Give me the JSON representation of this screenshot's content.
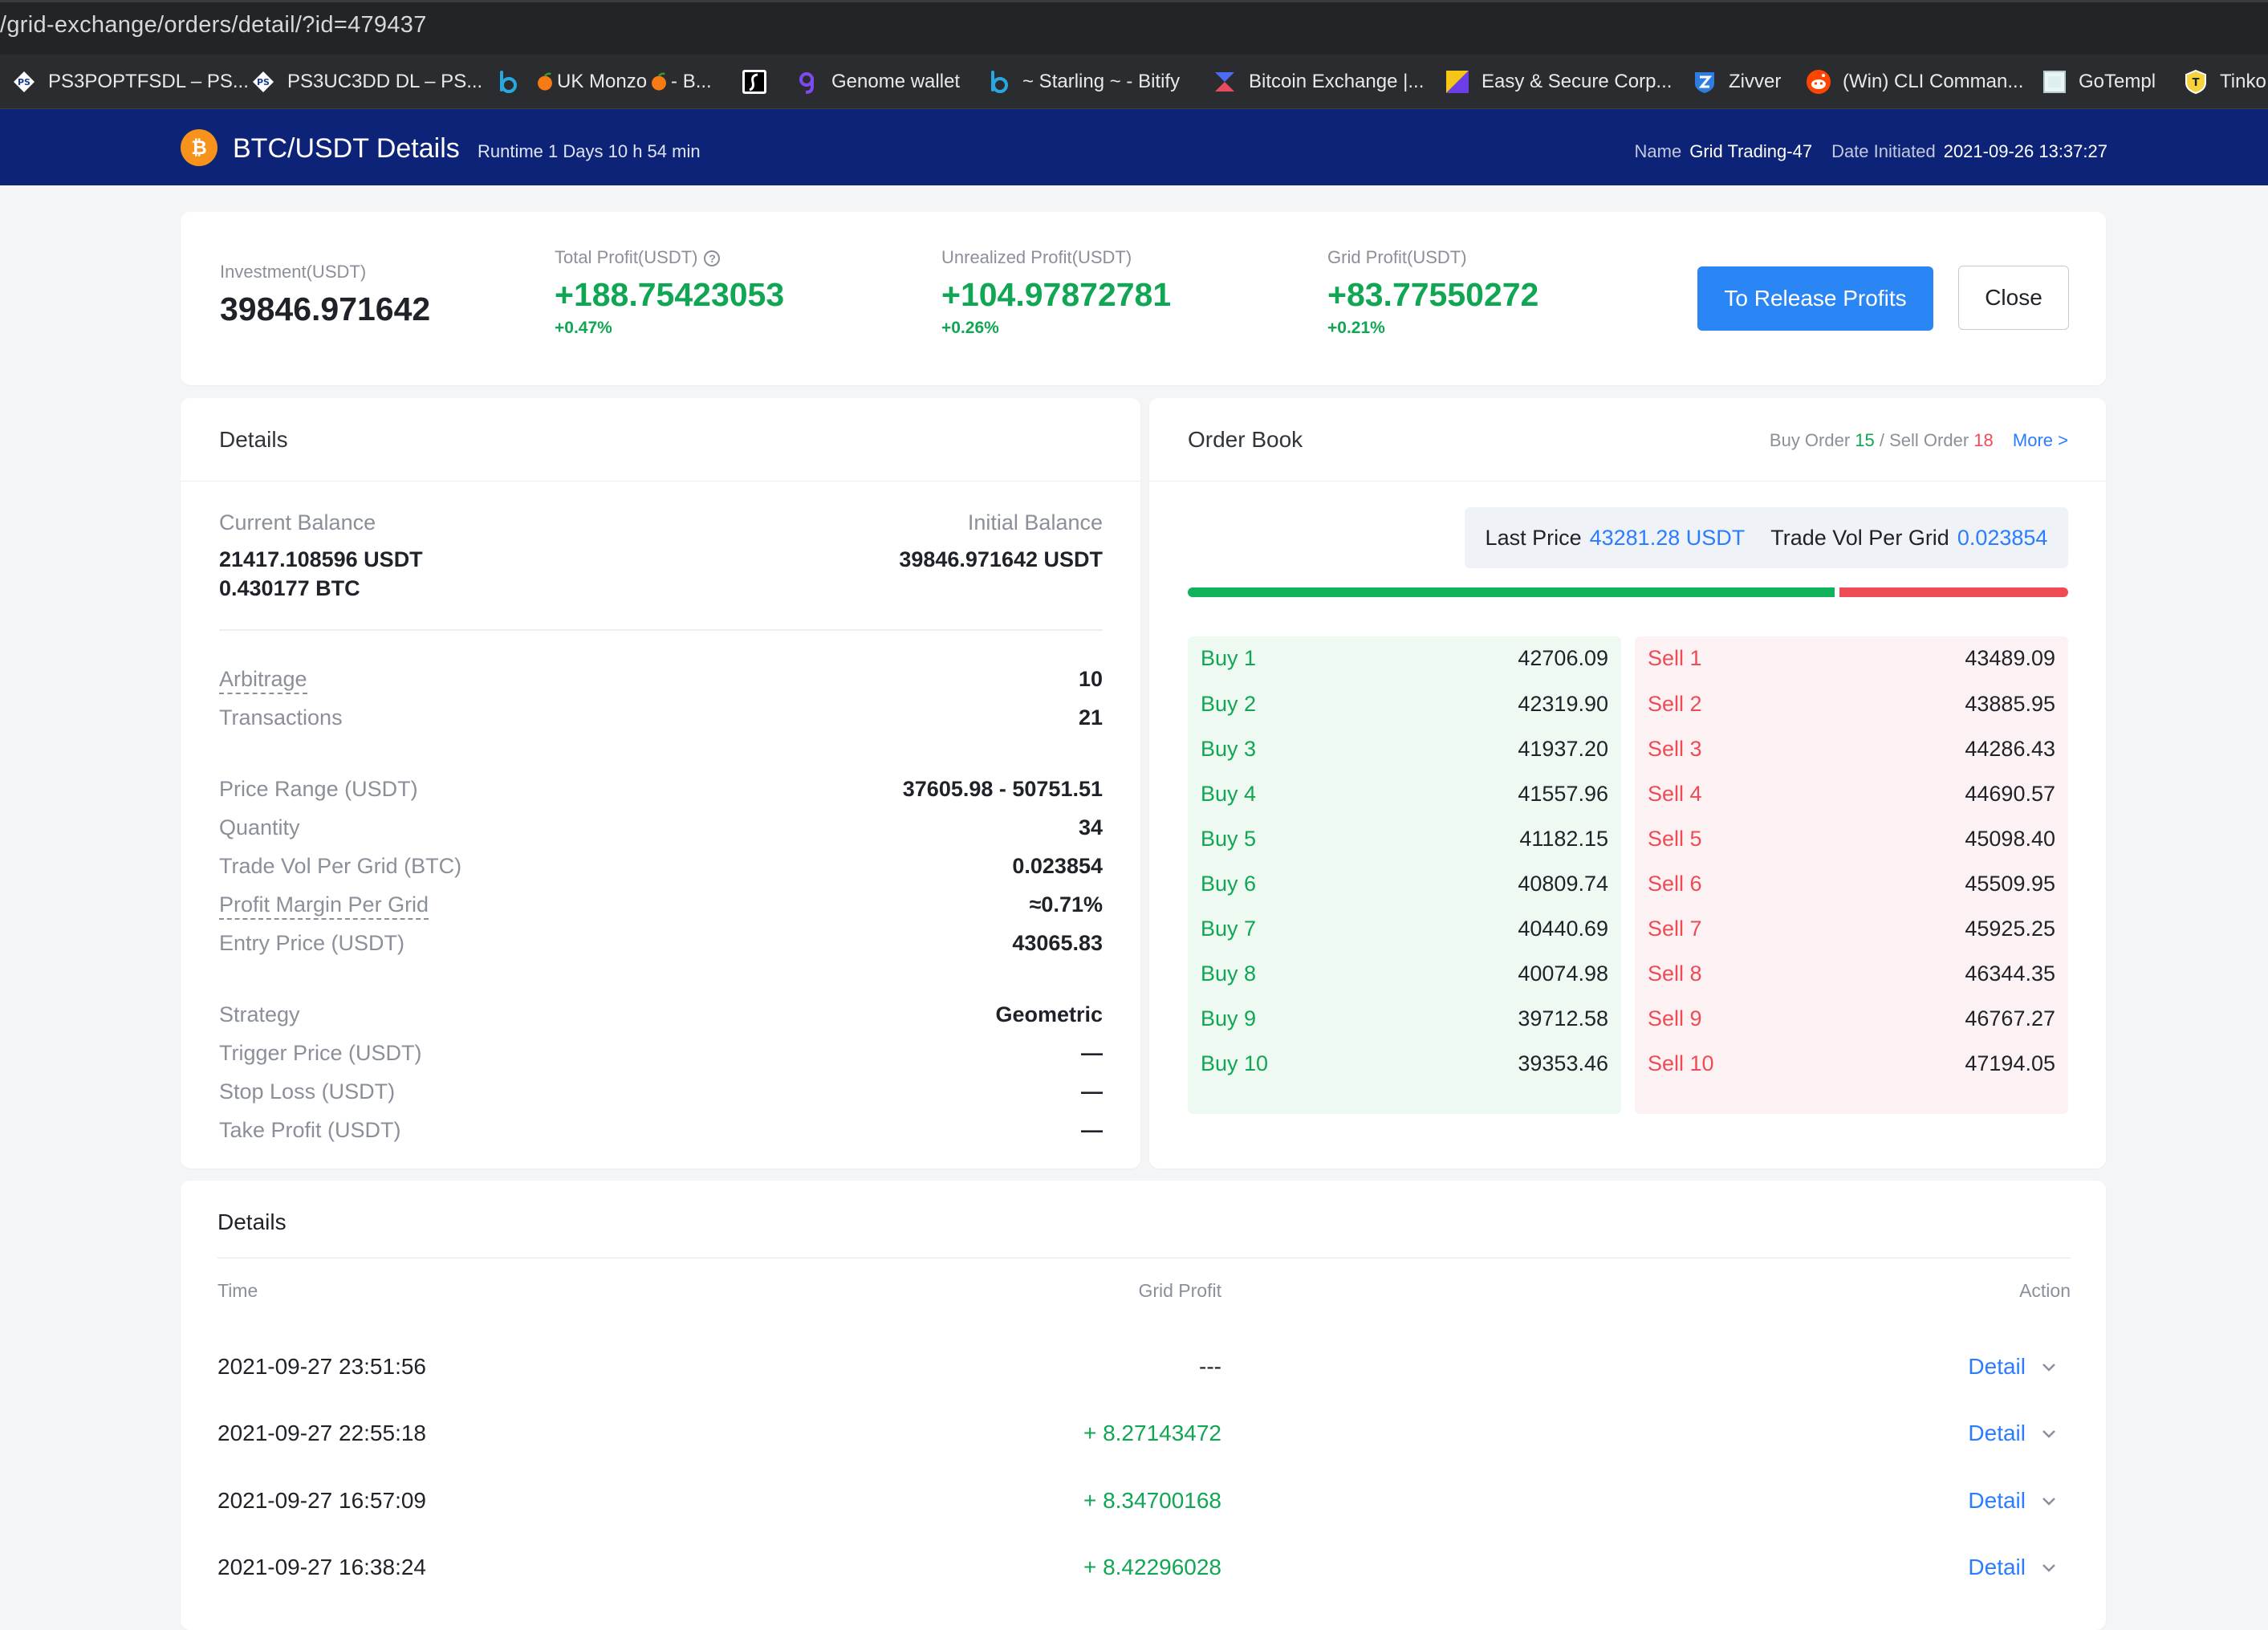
{
  "browser": {
    "url": "/grid-exchange/orders/detail/?id=479437",
    "bookmarks": [
      {
        "label": "PS3POPTFSDL – PS...",
        "icon": "ps-logo-icon"
      },
      {
        "label": "PS3UC3DD DL – PS...",
        "icon": "ps-logo-icon"
      },
      {
        "label": "",
        "icon": "b-logo-icon"
      },
      {
        "label": "UK Monzo",
        "icon": "orange-icon"
      },
      {
        "label": " - B...",
        "icon": "orange-icon"
      },
      {
        "label": "",
        "icon": "s-logo-icon"
      },
      {
        "label": "Genome wallet",
        "icon": "genome-icon"
      },
      {
        "label": "~ Starling ~ - Bitify",
        "icon": "b-logo-icon"
      },
      {
        "label": "Bitcoin Exchange |...",
        "icon": "exchange-logo-icon"
      },
      {
        "label": "Easy & Secure Corp...",
        "icon": "easy-logo-icon"
      },
      {
        "label": "Zivver",
        "icon": "zivver-icon"
      },
      {
        "label": "(Win) CLI Comman...",
        "icon": "reddit-icon"
      },
      {
        "label": "GoTempl",
        "icon": "doc-icon"
      },
      {
        "label": "Tinko",
        "icon": "tinko-icon"
      }
    ]
  },
  "header": {
    "title": "BTC/USDT Details",
    "runtime": "Runtime 1 Days 10 h 54 min",
    "name_label": "Name",
    "name_value": "Grid Trading-47",
    "date_label": "Date Initiated",
    "date_value": "2021-09-26 13:37:27",
    "coin_color": "#f7931a",
    "bar_color": "#0d2377"
  },
  "summary": {
    "investment_label": "Investment(USDT)",
    "investment_value": "39846.971642",
    "total_profit_label": "Total Profit(USDT)",
    "total_profit_value": "+188.75423053",
    "total_profit_pct": "+0.47%",
    "unrealized_label": "Unrealized Profit(USDT)",
    "unrealized_value": "+104.97872781",
    "unrealized_pct": "+0.26%",
    "grid_profit_label": "Grid Profit(USDT)",
    "grid_profit_value": "+83.77550272",
    "grid_profit_pct": "+0.21%",
    "release_button": "To Release Profits",
    "close_button": "Close",
    "info_glyph": "?"
  },
  "details": {
    "title": "Details",
    "current_balance_label": "Current Balance",
    "current_balance_usdt": "21417.108596 USDT",
    "current_balance_btc": "0.430177 BTC",
    "initial_balance_label": "Initial Balance",
    "initial_balance_value": "39846.971642 USDT",
    "rows": [
      {
        "label": "Arbitrage",
        "value": "10",
        "dashed": true
      },
      {
        "label": "Transactions",
        "value": "21"
      },
      {
        "label": "Price Range (USDT)",
        "value": "37605.98 - 50751.51"
      },
      {
        "label": "Quantity",
        "value": "34"
      },
      {
        "label": "Trade Vol Per Grid (BTC)",
        "value": "0.023854"
      },
      {
        "label": "Profit Margin Per Grid",
        "value": "≈0.71%",
        "dashed": true,
        "green": true
      },
      {
        "label": "Entry Price (USDT)",
        "value": "43065.83"
      },
      {
        "label": "Strategy",
        "value": "Geometric"
      },
      {
        "label": "Trigger Price (USDT)",
        "value": "—"
      },
      {
        "label": "Stop Loss (USDT)",
        "value": "—"
      },
      {
        "label": "Take Profit (USDT)",
        "value": "—"
      }
    ]
  },
  "orderbook": {
    "title": "Order Book",
    "buy_order_label": "Buy Order",
    "buy_order_count": "15",
    "separator": " / ",
    "sell_order_label": "Sell Order",
    "sell_order_count": "18",
    "more_link": "More >",
    "last_price_label": "Last Price",
    "last_price_value": "43281.28 USDT",
    "trade_vol_label": "Trade Vol Per Grid",
    "trade_vol_value": "0.023854",
    "buy_ratio": 0.735,
    "buy": [
      {
        "name": "Buy 1",
        "price": "42706.09"
      },
      {
        "name": "Buy 2",
        "price": "42319.90"
      },
      {
        "name": "Buy 3",
        "price": "41937.20"
      },
      {
        "name": "Buy 4",
        "price": "41557.96"
      },
      {
        "name": "Buy 5",
        "price": "41182.15"
      },
      {
        "name": "Buy 6",
        "price": "40809.74"
      },
      {
        "name": "Buy 7",
        "price": "40440.69"
      },
      {
        "name": "Buy 8",
        "price": "40074.98"
      },
      {
        "name": "Buy 9",
        "price": "39712.58"
      },
      {
        "name": "Buy 10",
        "price": "39353.46"
      }
    ],
    "sell": [
      {
        "name": "Sell 1",
        "price": "43489.09"
      },
      {
        "name": "Sell 2",
        "price": "43885.95"
      },
      {
        "name": "Sell 3",
        "price": "44286.43"
      },
      {
        "name": "Sell 4",
        "price": "44690.57"
      },
      {
        "name": "Sell 5",
        "price": "45098.40"
      },
      {
        "name": "Sell 6",
        "price": "45509.95"
      },
      {
        "name": "Sell 7",
        "price": "45925.25"
      },
      {
        "name": "Sell 8",
        "price": "46344.35"
      },
      {
        "name": "Sell 9",
        "price": "46767.27"
      },
      {
        "name": "Sell 10",
        "price": "47194.05"
      }
    ]
  },
  "history": {
    "title": "Details",
    "col_time": "Time",
    "col_profit": "Grid Profit",
    "col_action": "Action",
    "rows": [
      {
        "time": "2021-09-27 23:51:56",
        "profit": "---",
        "action": "Detail"
      },
      {
        "time": "2021-09-27 22:55:18",
        "profit": "+ 8.27143472",
        "action": "Detail"
      },
      {
        "time": "2021-09-27 16:57:09",
        "profit": "+ 8.34700168",
        "action": "Detail"
      },
      {
        "time": "2021-09-27 16:38:24",
        "profit": "+ 8.42296028",
        "action": "Detail"
      }
    ]
  }
}
